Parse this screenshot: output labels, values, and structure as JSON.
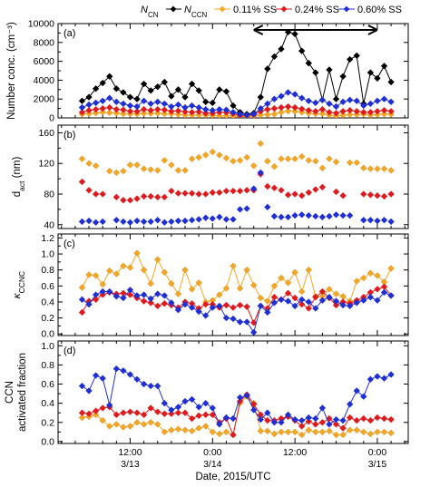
{
  "colors": {
    "total": "#000000",
    "ss011": "#f5a623",
    "ss024": "#e0191c",
    "ss060": "#1f2fd6"
  },
  "legend": {
    "items": [
      {
        "label": "N",
        "sub": "CN",
        "color": "#000000"
      },
      {
        "label": "N",
        "sub": "CCN",
        "color": "#f5a623",
        "after": "0.11% SS"
      },
      {
        "label": "0.24% SS",
        "color": "#e0191c"
      },
      {
        "label": "0.60% SS",
        "color": "#1f2fd6"
      }
    ]
  },
  "xaxis": {
    "title": "Date, 2015/UTC",
    "ticks": [
      {
        "t": 12,
        "top": "12:00",
        "bottom": "3/13"
      },
      {
        "t": 24,
        "top": "0:00",
        "bottom": "3/14"
      },
      {
        "t": 36,
        "top": "12:00",
        "bottom": ""
      },
      {
        "t": 48,
        "top": "0:00",
        "bottom": "3/15"
      }
    ]
  },
  "chart_data": [
    {
      "panel": "(a)",
      "type": "line",
      "ylabel": "Number conc. (cm⁻³)",
      "ylim": [
        0,
        10000
      ],
      "yticks": [
        "0",
        "2000",
        "4000",
        "6000",
        "8000",
        "10000"
      ],
      "annotation": "double-headed arrow from about 3/14 06:00 to 3/15 00:00",
      "x_hours_since_3_13_0000": [
        5,
        6,
        7,
        8,
        9,
        10,
        11,
        12,
        13,
        14,
        15,
        16,
        17,
        18,
        19,
        20,
        21,
        22,
        23,
        24,
        25,
        26,
        27,
        28,
        29,
        30,
        31,
        32,
        33,
        34,
        35,
        36,
        37,
        38,
        39,
        40,
        41,
        42,
        43,
        44,
        45,
        46,
        47,
        48,
        49,
        50
      ],
      "series": [
        {
          "name": "N_CN",
          "values": [
            1800,
            2200,
            3100,
            3700,
            4400,
            3100,
            2700,
            2200,
            2000,
            3600,
            2900,
            3300,
            3800,
            2300,
            3000,
            2200,
            3600,
            2900,
            1700,
            1600,
            3000,
            2800,
            1300,
            600,
            400,
            500,
            2200,
            5200,
            6500,
            7300,
            9100,
            8900,
            7100,
            5800,
            4800,
            1900,
            5100,
            2000,
            4400,
            6200,
            6600,
            1500,
            4800,
            4200,
            5500,
            3800
          ]
        },
        {
          "name": "0.11% SS",
          "values": [
            400,
            450,
            500,
            600,
            550,
            500,
            430,
            420,
            400,
            480,
            460,
            500,
            430,
            420,
            380,
            300,
            300,
            300,
            300,
            250,
            220,
            220,
            200,
            150,
            150,
            200,
            300,
            350,
            400,
            600,
            720,
            700,
            600,
            500,
            420,
            450,
            300,
            200,
            300,
            350,
            350,
            400,
            300,
            350,
            400,
            380
          ]
        },
        {
          "name": "0.24% SS",
          "values": [
            600,
            800,
            900,
            1000,
            1100,
            900,
            850,
            700,
            680,
            900,
            800,
            900,
            850,
            700,
            750,
            650,
            600,
            650,
            500,
            500,
            600,
            580,
            450,
            250,
            250,
            350,
            700,
            900,
            1000,
            1100,
            1200,
            1100,
            950,
            800,
            700,
            900,
            600,
            500,
            700,
            800,
            700,
            600,
            600,
            700,
            800,
            700
          ]
        },
        {
          "name": "0.60% SS",
          "values": [
            1100,
            1400,
            1600,
            1800,
            2100,
            1700,
            1500,
            1300,
            1200,
            1800,
            1500,
            1700,
            1500,
            1200,
            1400,
            1100,
            1300,
            1100,
            900,
            800,
            900,
            850,
            600,
            400,
            300,
            400,
            1000,
            1500,
            2000,
            2300,
            2700,
            2500,
            2100,
            1800,
            1600,
            1900,
            1500,
            1200,
            1700,
            1900,
            1800,
            1300,
            1500,
            1800,
            2000,
            1700
          ]
        }
      ]
    },
    {
      "panel": "(b)",
      "type": "scatter",
      "ylabel": "d_act (nm)",
      "ylim": [
        35,
        170
      ],
      "yticks": [
        "40",
        "80",
        "120",
        "160"
      ],
      "series": [
        {
          "name": "0.11% SS",
          "x": [
            5,
            6,
            7,
            9,
            10,
            11,
            12,
            13,
            14,
            15,
            16,
            17,
            18,
            19,
            20,
            21,
            22,
            23,
            24,
            25,
            26,
            27,
            28,
            29,
            30,
            31,
            32,
            33,
            34,
            35,
            36,
            37,
            38,
            39,
            40,
            41,
            42,
            44,
            45,
            46,
            47,
            48,
            49,
            50
          ],
          "values": [
            126,
            120,
            117,
            110,
            108,
            110,
            118,
            118,
            113,
            112,
            111,
            124,
            118,
            111,
            111,
            126,
            128,
            131,
            135,
            131,
            127,
            123,
            124,
            128,
            117,
            146,
            123,
            116,
            126,
            126,
            126,
            129,
            124,
            123,
            114,
            126,
            122,
            121,
            121,
            114,
            113,
            113,
            113,
            111
          ]
        },
        {
          "name": "0.24% SS",
          "x": [
            5,
            6,
            7,
            8,
            10,
            11,
            12,
            13,
            14,
            15,
            16,
            17,
            18,
            19,
            20,
            21,
            22,
            23,
            24,
            25,
            26,
            27,
            28,
            29,
            30,
            31,
            32,
            33,
            34,
            35,
            36,
            37,
            38,
            39,
            40,
            42,
            43,
            46,
            47,
            48,
            49,
            50
          ],
          "values": [
            96,
            85,
            80,
            80,
            76,
            72,
            72,
            74,
            77,
            77,
            76,
            76,
            84,
            81,
            81,
            81,
            80,
            80,
            82,
            82,
            84,
            84,
            84,
            85,
            85,
            106,
            90,
            88,
            85,
            79,
            80,
            78,
            82,
            86,
            89,
            83,
            78,
            80,
            79,
            78,
            77,
            80
          ]
        },
        {
          "name": "0.60% SS",
          "x": [
            5,
            6,
            7,
            8,
            10,
            11,
            12,
            13,
            14,
            15,
            16,
            17,
            18,
            19,
            20,
            21,
            22,
            23,
            24,
            25,
            26,
            27,
            28,
            29,
            30,
            31,
            32,
            33,
            34,
            35,
            36,
            37,
            38,
            39,
            40,
            41,
            42,
            43,
            44,
            46,
            47,
            48,
            49,
            50
          ],
          "values": [
            44,
            45,
            43,
            44,
            46,
            44,
            43,
            45,
            44,
            44,
            46,
            43,
            44,
            45,
            45,
            46,
            47,
            49,
            48,
            50,
            47,
            47,
            60,
            61,
            87,
            108,
            63,
            51,
            50,
            50,
            52,
            53,
            52,
            51,
            50,
            51,
            53,
            52,
            52,
            46,
            46,
            45,
            46,
            44
          ]
        }
      ]
    },
    {
      "panel": "(c)",
      "type": "line",
      "ylabel": "κ_CCNC",
      "ylim": [
        -0.02,
        1.25
      ],
      "yticks": [
        "0.0",
        "0.2",
        "0.4",
        "0.6",
        "0.8",
        "1.0",
        "1.2"
      ],
      "x_hours_since_3_13_0000": [
        5,
        6,
        7,
        8,
        9,
        10,
        11,
        12,
        13,
        14,
        15,
        16,
        17,
        18,
        19,
        20,
        21,
        22,
        23,
        24,
        25,
        26,
        27,
        28,
        29,
        30,
        31,
        32,
        33,
        34,
        35,
        36,
        37,
        38,
        39,
        40,
        41,
        42,
        43,
        44,
        45,
        46,
        47,
        48,
        49,
        50
      ],
      "series": [
        {
          "name": "0.11% SS",
          "values": [
            0.58,
            0.74,
            0.73,
            0.62,
            0.79,
            0.75,
            0.85,
            0.83,
            1.01,
            0.8,
            0.63,
            0.93,
            0.77,
            0.63,
            0.5,
            0.8,
            0.56,
            0.64,
            0.4,
            0.42,
            0.49,
            0.57,
            0.85,
            0.57,
            0.8,
            0.61,
            0.45,
            0.41,
            0.6,
            0.7,
            0.64,
            0.77,
            0.53,
            0.8,
            0.47,
            0.47,
            0.56,
            0.5,
            0.47,
            0.41,
            0.66,
            0.7,
            0.76,
            0.73,
            0.65,
            0.82
          ]
        },
        {
          "name": "0.24% SS",
          "values": [
            0.27,
            0.41,
            0.43,
            0.49,
            0.52,
            0.5,
            0.51,
            0.49,
            0.45,
            0.41,
            0.39,
            0.35,
            0.38,
            0.36,
            0.33,
            0.4,
            0.38,
            0.32,
            0.37,
            0.37,
            0.33,
            0.36,
            0.33,
            0.36,
            0.34,
            0.14,
            0.35,
            0.32,
            0.46,
            0.43,
            0.51,
            0.45,
            0.37,
            0.32,
            0.46,
            0.53,
            0.45,
            0.36,
            0.4,
            0.38,
            0.42,
            0.46,
            0.52,
            0.56,
            0.59,
            0.48
          ]
        },
        {
          "name": "0.60% SS",
          "values": [
            0.43,
            0.37,
            0.49,
            0.53,
            0.53,
            0.47,
            0.45,
            0.55,
            0.48,
            0.49,
            0.44,
            0.5,
            0.48,
            0.39,
            0.3,
            0.37,
            0.33,
            0.28,
            0.23,
            0.33,
            0.35,
            0.2,
            0.19,
            0.15,
            0.15,
            0.02,
            0.35,
            0.27,
            0.39,
            0.43,
            0.41,
            0.35,
            0.43,
            0.4,
            0.32,
            0.42,
            0.46,
            0.41,
            0.36,
            0.35,
            0.39,
            0.42,
            0.46,
            0.42,
            0.52,
            0.48
          ]
        }
      ]
    },
    {
      "panel": "(d)",
      "type": "line",
      "ylabel": "CCN activated fraction",
      "ylim": [
        -0.02,
        1.05
      ],
      "yticks": [
        "0.0",
        "0.2",
        "0.4",
        "0.6",
        "0.8",
        "1.0"
      ],
      "x_hours_since_3_13_0000": [
        5,
        6,
        7,
        8,
        9,
        10,
        11,
        12,
        13,
        14,
        15,
        16,
        17,
        18,
        19,
        20,
        21,
        22,
        23,
        24,
        25,
        26,
        27,
        28,
        29,
        30,
        31,
        32,
        33,
        34,
        35,
        36,
        37,
        38,
        39,
        40,
        41,
        42,
        43,
        44,
        45,
        46,
        47,
        48,
        49,
        50
      ],
      "series": [
        {
          "name": "0.11% SS",
          "values": [
            0.25,
            0.26,
            0.28,
            0.22,
            0.16,
            0.18,
            0.15,
            0.16,
            0.2,
            0.18,
            0.2,
            0.18,
            0.1,
            0.12,
            0.13,
            0.12,
            0.11,
            0.14,
            0.16,
            0.1,
            0.08,
            0.1,
            0.07,
            0.4,
            0.47,
            0.4,
            0.11,
            0.11,
            0.08,
            0.1,
            0.1,
            0.1,
            0.07,
            0.12,
            0.1,
            0.1,
            0.11,
            0.07,
            0.07,
            0.12,
            0.12,
            0.1,
            0.08,
            0.1,
            0.1,
            0.09
          ]
        },
        {
          "name": "0.24% SS",
          "values": [
            0.3,
            0.29,
            0.32,
            0.35,
            0.36,
            0.28,
            0.3,
            0.31,
            0.3,
            0.28,
            0.35,
            0.31,
            0.29,
            0.29,
            0.3,
            0.3,
            0.24,
            0.27,
            0.28,
            0.28,
            0.2,
            0.24,
            0.07,
            0.42,
            0.49,
            0.39,
            0.28,
            0.22,
            0.22,
            0.24,
            0.26,
            0.22,
            0.16,
            0.21,
            0.18,
            0.2,
            0.24,
            0.18,
            0.14,
            0.25,
            0.22,
            0.24,
            0.22,
            0.25,
            0.24,
            0.23
          ]
        },
        {
          "name": "0.60% SS",
          "values": [
            0.58,
            0.53,
            0.69,
            0.66,
            0.38,
            0.76,
            0.74,
            0.7,
            0.65,
            0.6,
            0.58,
            0.58,
            0.4,
            0.33,
            0.36,
            0.42,
            0.44,
            0.36,
            0.4,
            0.35,
            0.18,
            0.25,
            0.24,
            0.46,
            0.48,
            0.33,
            0.23,
            0.3,
            0.2,
            0.2,
            0.28,
            0.23,
            0.22,
            0.25,
            0.24,
            0.35,
            0.18,
            0.23,
            0.22,
            0.39,
            0.53,
            0.47,
            0.65,
            0.68,
            0.66,
            0.7
          ]
        }
      ]
    }
  ]
}
